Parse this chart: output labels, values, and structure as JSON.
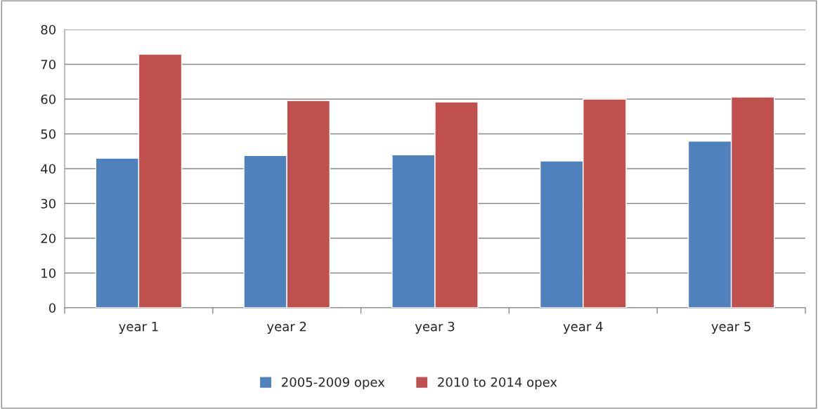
{
  "chart_data": {
    "type": "bar",
    "categories": [
      "year 1",
      "year 2",
      "year 3",
      "year 4",
      "year 5"
    ],
    "series": [
      {
        "name": "2005-2009 opex",
        "color": "#4f81bd",
        "values": [
          43.0,
          43.8,
          44.0,
          42.2,
          47.9
        ]
      },
      {
        "name": "2010 to 2014 opex",
        "color": "#c0504d",
        "values": [
          72.9,
          59.6,
          59.2,
          60.0,
          60.6
        ]
      }
    ],
    "ylim": [
      0,
      80
    ],
    "yticks": [
      0,
      10,
      20,
      30,
      40,
      50,
      60,
      70,
      80
    ],
    "grid": "y",
    "legend": "bottom"
  }
}
